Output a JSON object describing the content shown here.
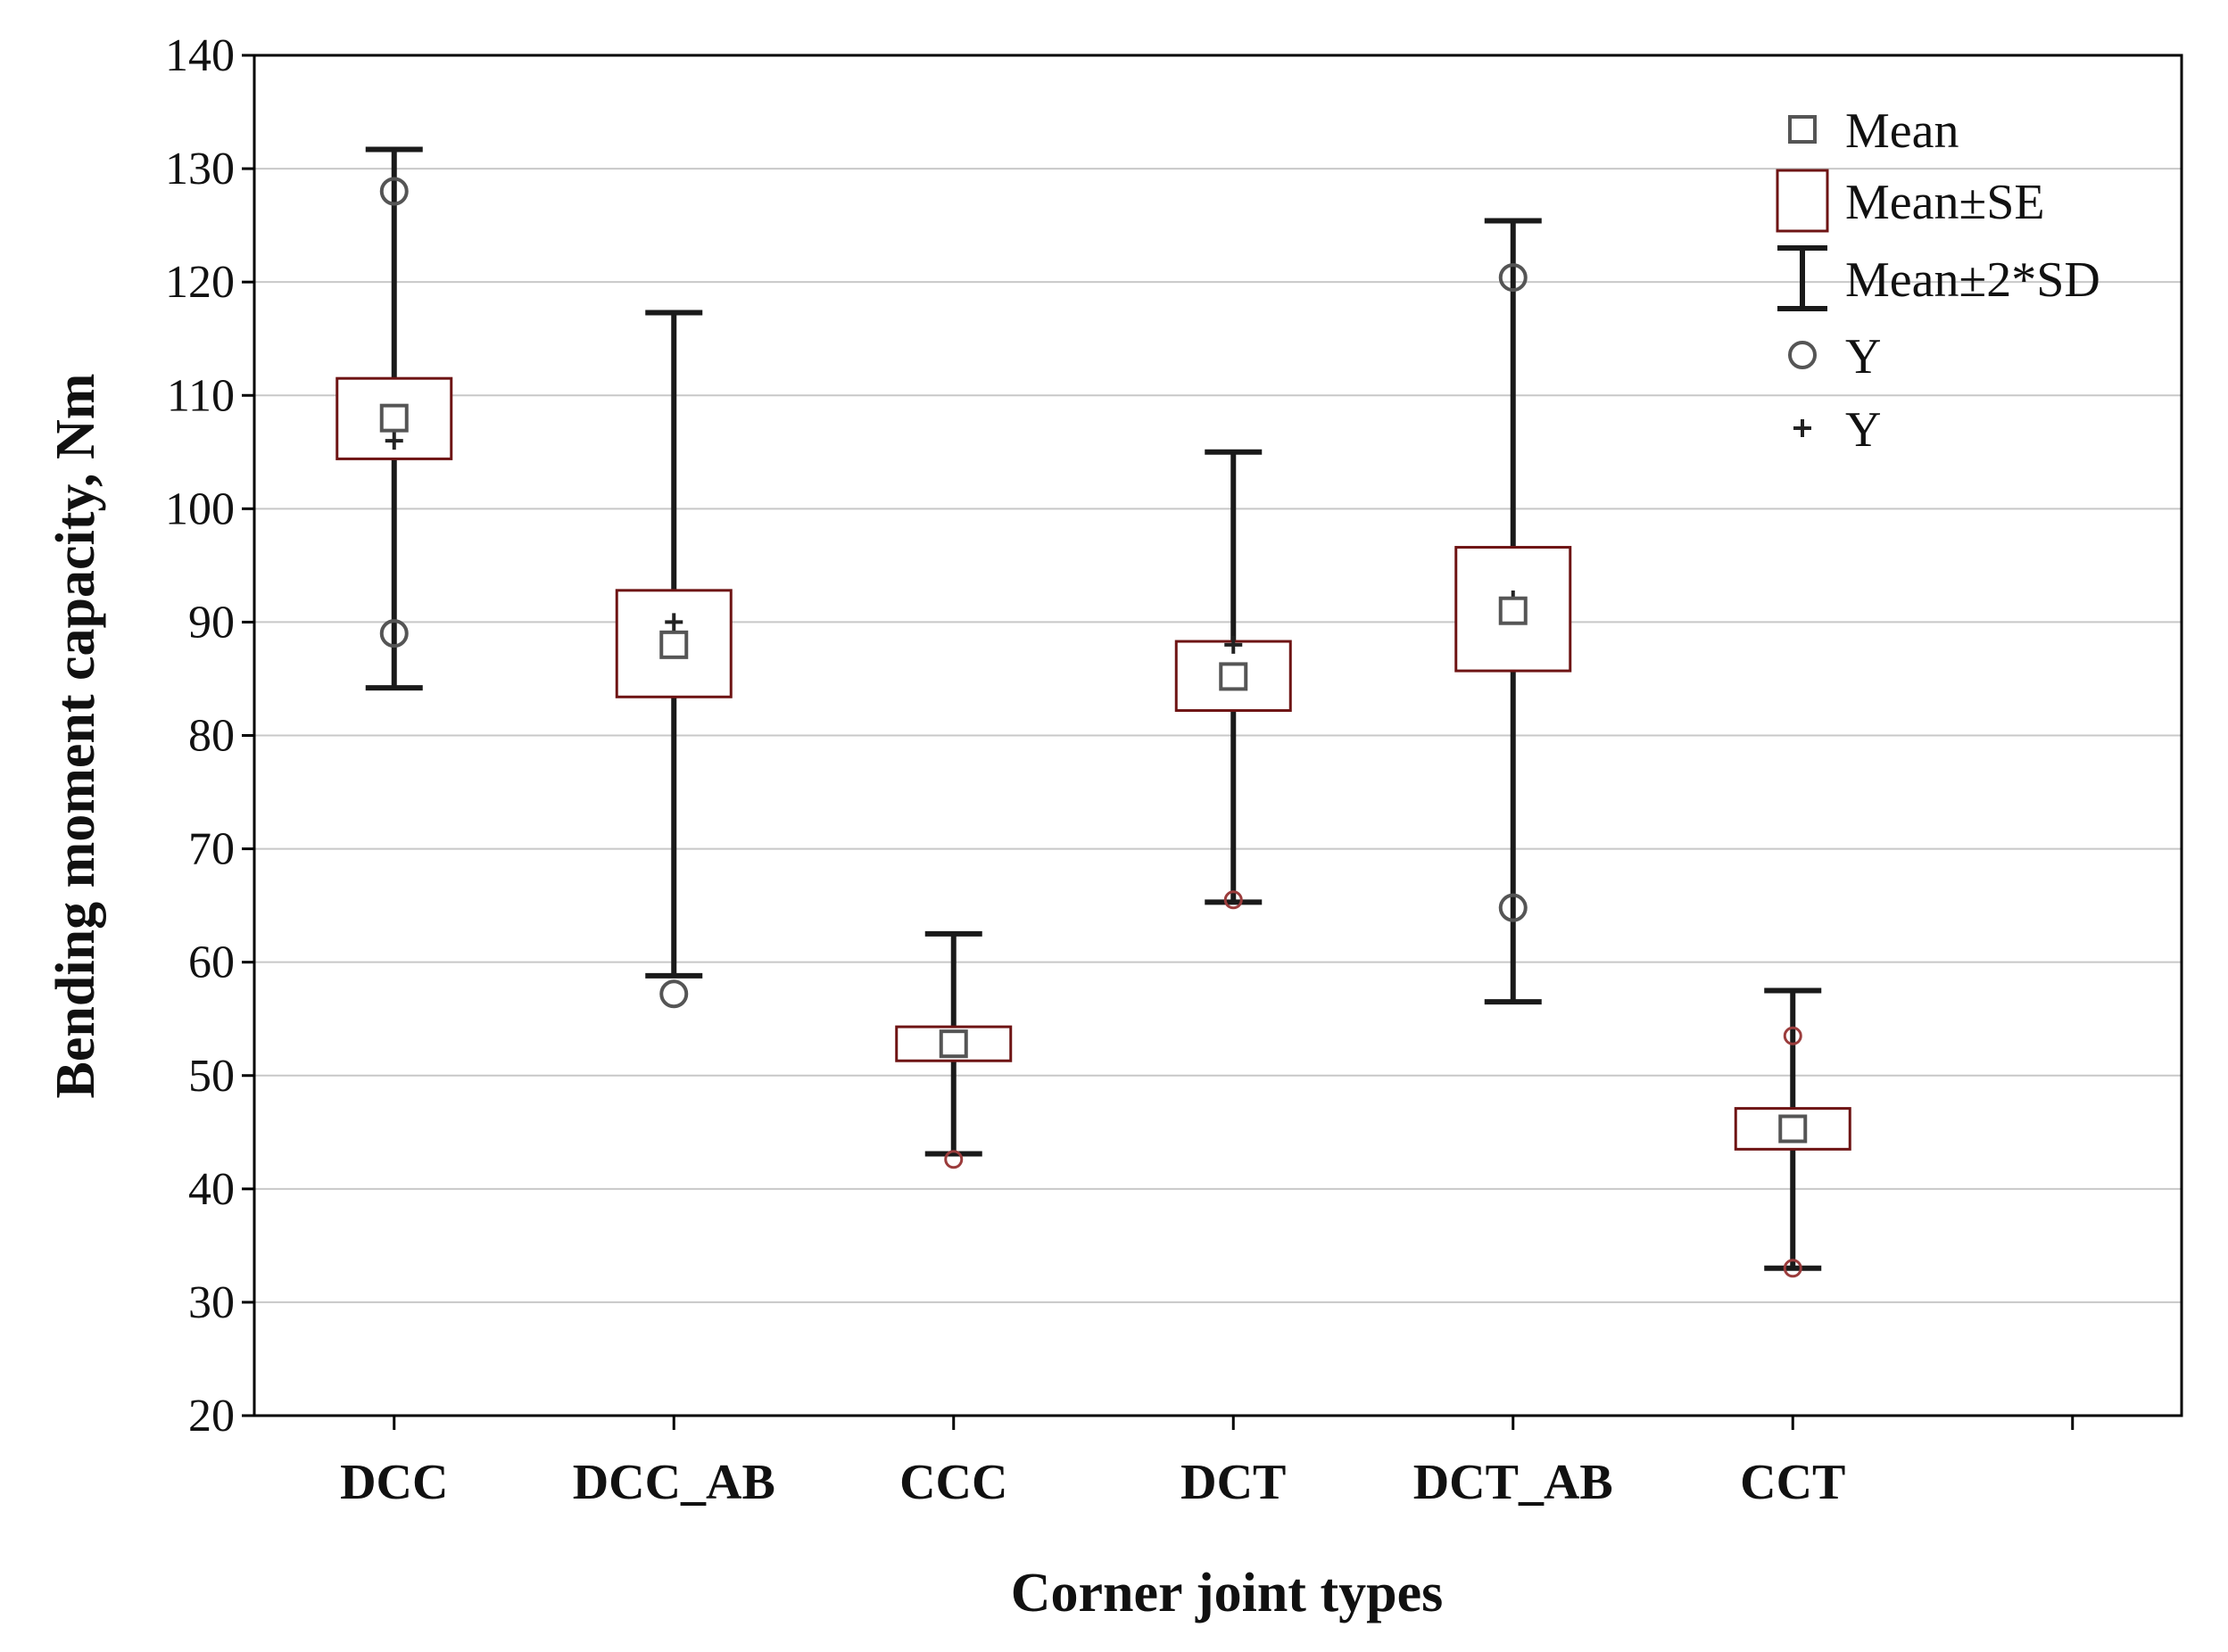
{
  "chart_data": {
    "type": "box",
    "title": "",
    "xlabel": "Corner joint types",
    "ylabel": "Bending moment capacity, Nm",
    "ylim": [
      20,
      140
    ],
    "yticks": [
      20,
      30,
      40,
      50,
      60,
      70,
      80,
      90,
      100,
      110,
      120,
      130,
      140
    ],
    "grid": true,
    "legend_position": "top-right",
    "legend": [
      "Mean",
      "Mean±SE",
      "Mean±2*SD",
      "Y",
      "Y"
    ],
    "categories": [
      "DCC",
      "DCC_AB",
      "CCC",
      "DCT",
      "DCT_AB",
      "CCT"
    ],
    "mean": [
      108.0,
      88.0,
      52.8,
      85.2,
      91.0,
      45.3
    ],
    "se_low": [
      104.4,
      83.4,
      51.3,
      82.2,
      85.7,
      43.5
    ],
    "se_high": [
      111.5,
      92.8,
      54.3,
      88.3,
      96.6,
      47.1
    ],
    "sd2_low": [
      84.2,
      58.8,
      43.1,
      65.3,
      56.5,
      33.0
    ],
    "sd2_high": [
      131.7,
      117.3,
      62.5,
      105.0,
      125.4,
      57.5
    ],
    "y_circle": [
      [
        128.0,
        89.0
      ],
      [
        57.2
      ],
      [
        42.6
      ],
      [
        65.5
      ],
      [
        120.4,
        64.8
      ],
      [
        53.5,
        33.0
      ]
    ],
    "y_plus": [
      [
        106.0
      ],
      [
        90.0
      ],
      [],
      [
        88.0
      ],
      [
        92.0
      ],
      []
    ],
    "colors": {
      "axis": "#000000",
      "grid": "#c8c8c8",
      "se_box": "#6e1414",
      "whisker": "#1a1a1a",
      "mean_marker": "#555555",
      "circle_dark": "#555555",
      "circle_red": "#9b3c3c"
    }
  }
}
